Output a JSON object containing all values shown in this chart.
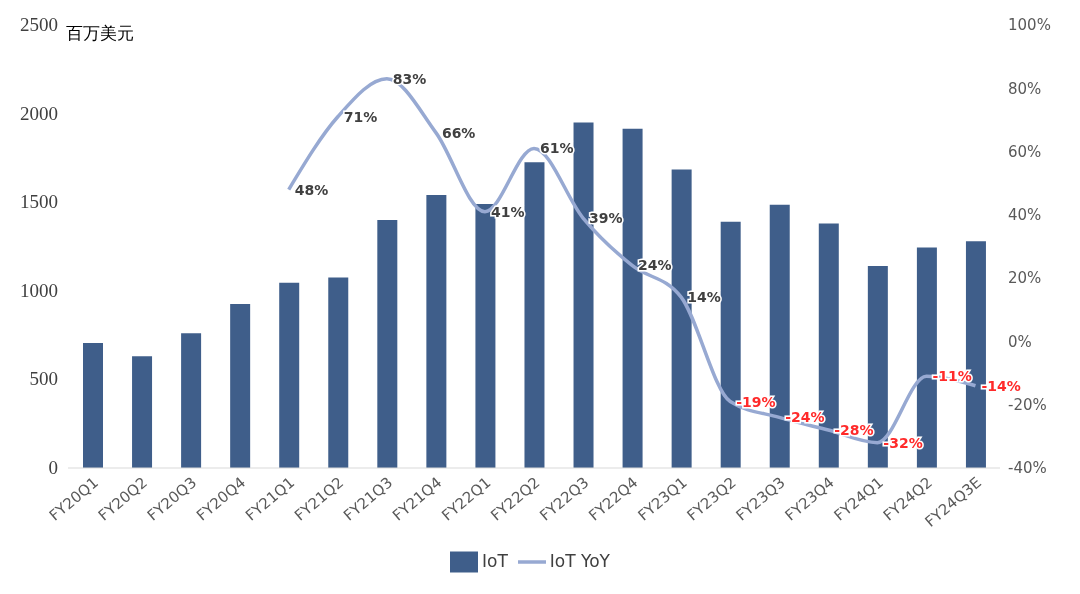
{
  "chart_data": {
    "type": "bar",
    "ylabel": "百万美元",
    "categories": [
      "FY20Q1",
      "FY20Q2",
      "FY20Q3",
      "FY20Q4",
      "FY21Q1",
      "FY21Q2",
      "FY21Q3",
      "FY21Q4",
      "FY22Q1",
      "FY22Q2",
      "FY22Q3",
      "FY22Q4",
      "FY23Q1",
      "FY23Q2",
      "FY23Q3",
      "FY23Q4",
      "FY24Q1",
      "FY24Q2",
      "FY24Q3E"
    ],
    "series": [
      {
        "name": "IoT",
        "color": "#3f5e8a",
        "values": [
          705,
          630,
          760,
          925,
          1045,
          1075,
          1400,
          1540,
          1490,
          1725,
          1950,
          1915,
          1685,
          1390,
          1485,
          1380,
          1140,
          1245,
          1280
        ]
      },
      {
        "name": "IoT YoY",
        "type": "line",
        "axis": "y2",
        "color": "#97a9d2",
        "values": [
          null,
          null,
          null,
          null,
          48,
          71,
          83,
          66,
          41,
          61,
          39,
          24,
          14,
          -19,
          -24,
          -28,
          -32,
          -11,
          -14
        ],
        "value_labels": [
          null,
          null,
          null,
          null,
          "48%",
          "71%",
          "83%",
          "66%",
          "41%",
          "61%",
          "39%",
          "24%",
          "14%",
          "-19%",
          "-24%",
          "-28%",
          "-32%",
          "-11%",
          "-14%"
        ]
      }
    ],
    "ylim": [
      0,
      2500
    ],
    "yticks": [
      0,
      500,
      1000,
      1500,
      2000,
      2500
    ],
    "y2lim": [
      -40,
      100
    ],
    "y2ticks": [
      {
        "value": -40,
        "label": "-40%"
      },
      {
        "value": -20,
        "label": "-20%"
      },
      {
        "value": 0,
        "label": "0%"
      },
      {
        "value": 20,
        "label": "20%"
      },
      {
        "value": 40,
        "label": "40%"
      },
      {
        "value": 60,
        "label": "60%"
      },
      {
        "value": 80,
        "label": "80%"
      },
      {
        "value": 100,
        "label": "100%"
      }
    ],
    "grid": false,
    "legend": "bottom"
  }
}
